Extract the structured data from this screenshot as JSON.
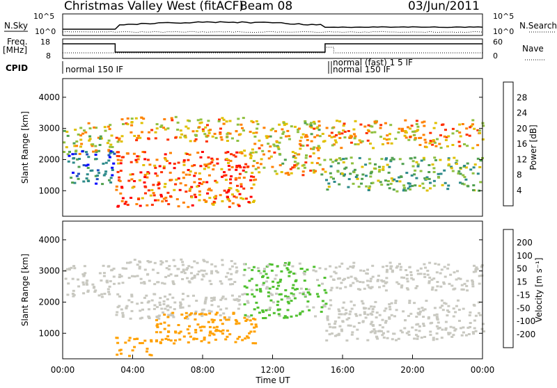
{
  "header": {
    "station": "Christmas Valley West (fitACF)",
    "beam": "Beam 08",
    "date": "03/Jun/2011"
  },
  "top_panels": {
    "nsky_label": "N.Sky",
    "nsearch_label": "N.Search",
    "nsky_ticks": [
      "10^5",
      "10^0"
    ],
    "freq_label": "Freq.",
    "freq_unit": "[MHz]",
    "freq_ticks": [
      "18",
      "8"
    ],
    "nave_label": "Nave",
    "nave_ticks": [
      "60",
      "0"
    ],
    "cpid_label": "CPID",
    "cpid_entries": [
      {
        "time": 0.0,
        "text": "normal 150 IF"
      },
      {
        "time": 15.0,
        "text": "normal (fast) 1 5 IF"
      },
      {
        "time": 15.0,
        "text": "normal 150 IF"
      }
    ]
  },
  "chart_data": [
    {
      "type": "heatmap",
      "name": "power",
      "xlabel": "",
      "ylabel": "Slant Range [km]",
      "xlim": [
        0,
        24
      ],
      "ylim": [
        180,
        4600
      ],
      "yticks": [
        1000,
        2000,
        3000,
        4000
      ],
      "colorbar_label": "Power [dB]",
      "colorbar_ticks": [
        4,
        8,
        12,
        16,
        20,
        24,
        28
      ],
      "colorbar_range": [
        0,
        32
      ],
      "colorscale": [
        "#0000ff",
        "#2050c0",
        "#2d8a8a",
        "#50a050",
        "#90c040",
        "#e0c000",
        "#ff8000",
        "#ff3000",
        "#ff0000"
      ],
      "echo_regions": [
        {
          "t0": 0.0,
          "t1": 2.9,
          "r0": 2200,
          "r1": 3200,
          "level": 18
        },
        {
          "t0": 0.2,
          "t1": 2.9,
          "r0": 1200,
          "r1": 2300,
          "level": 6
        },
        {
          "t0": 3.0,
          "t1": 10.3,
          "r0": 2600,
          "r1": 3400,
          "level": 22
        },
        {
          "t0": 3.0,
          "t1": 10.5,
          "r0": 1600,
          "r1": 2300,
          "level": 27
        },
        {
          "t0": 3.0,
          "t1": 11.0,
          "r0": 500,
          "r1": 1600,
          "level": 26
        },
        {
          "t0": 10.3,
          "t1": 15.0,
          "r0": 1500,
          "r1": 3300,
          "level": 20
        },
        {
          "t0": 15.0,
          "t1": 24.0,
          "r0": 2400,
          "r1": 3300,
          "level": 22
        },
        {
          "t0": 15.0,
          "t1": 24.0,
          "r0": 1000,
          "r1": 2100,
          "level": 13
        }
      ]
    },
    {
      "type": "heatmap",
      "name": "velocity",
      "xlabel": "Time UT",
      "ylabel": "Slant Range [km]",
      "xlim": [
        0,
        24
      ],
      "ylim": [
        180,
        4600
      ],
      "xticks": [
        "00:00",
        "04:00",
        "08:00",
        "12:00",
        "16:00",
        "20:00",
        "00:00"
      ],
      "yticks": [
        1000,
        2000,
        3000,
        4000
      ],
      "colorbar_label": "Velocity [m s⁻¹]",
      "colorbar_ticks": [
        200,
        100,
        50,
        15,
        -15,
        -50,
        -100,
        -200
      ],
      "colorscale": [
        "#ff0000",
        "#ff6000",
        "#ffa000",
        "#ffc000",
        "#c8c8c0",
        "#50c030",
        "#309060",
        "#3050c0",
        "#2020e0"
      ],
      "echo_regions": [
        {
          "t0": 0.0,
          "t1": 2.9,
          "r0": 2200,
          "r1": 3200,
          "velocity": 0
        },
        {
          "t0": 3.0,
          "t1": 10.3,
          "r0": 2600,
          "r1": 3400,
          "velocity": 0
        },
        {
          "t0": 3.0,
          "t1": 10.5,
          "r0": 1500,
          "r1": 2300,
          "velocity": 0
        },
        {
          "t0": 5.0,
          "t1": 11.0,
          "r0": 700,
          "r1": 1700,
          "velocity": -60
        },
        {
          "t0": 3.0,
          "t1": 5.0,
          "r0": 300,
          "r1": 900,
          "velocity": -60
        },
        {
          "t0": 10.3,
          "t1": 15.0,
          "r0": 1500,
          "r1": 3300,
          "velocity": 20
        },
        {
          "t0": 15.0,
          "t1": 24.0,
          "r0": 2400,
          "r1": 3300,
          "velocity": 0
        },
        {
          "t0": 15.0,
          "t1": 24.0,
          "r0": 800,
          "r1": 2100,
          "velocity": 0
        }
      ]
    }
  ]
}
